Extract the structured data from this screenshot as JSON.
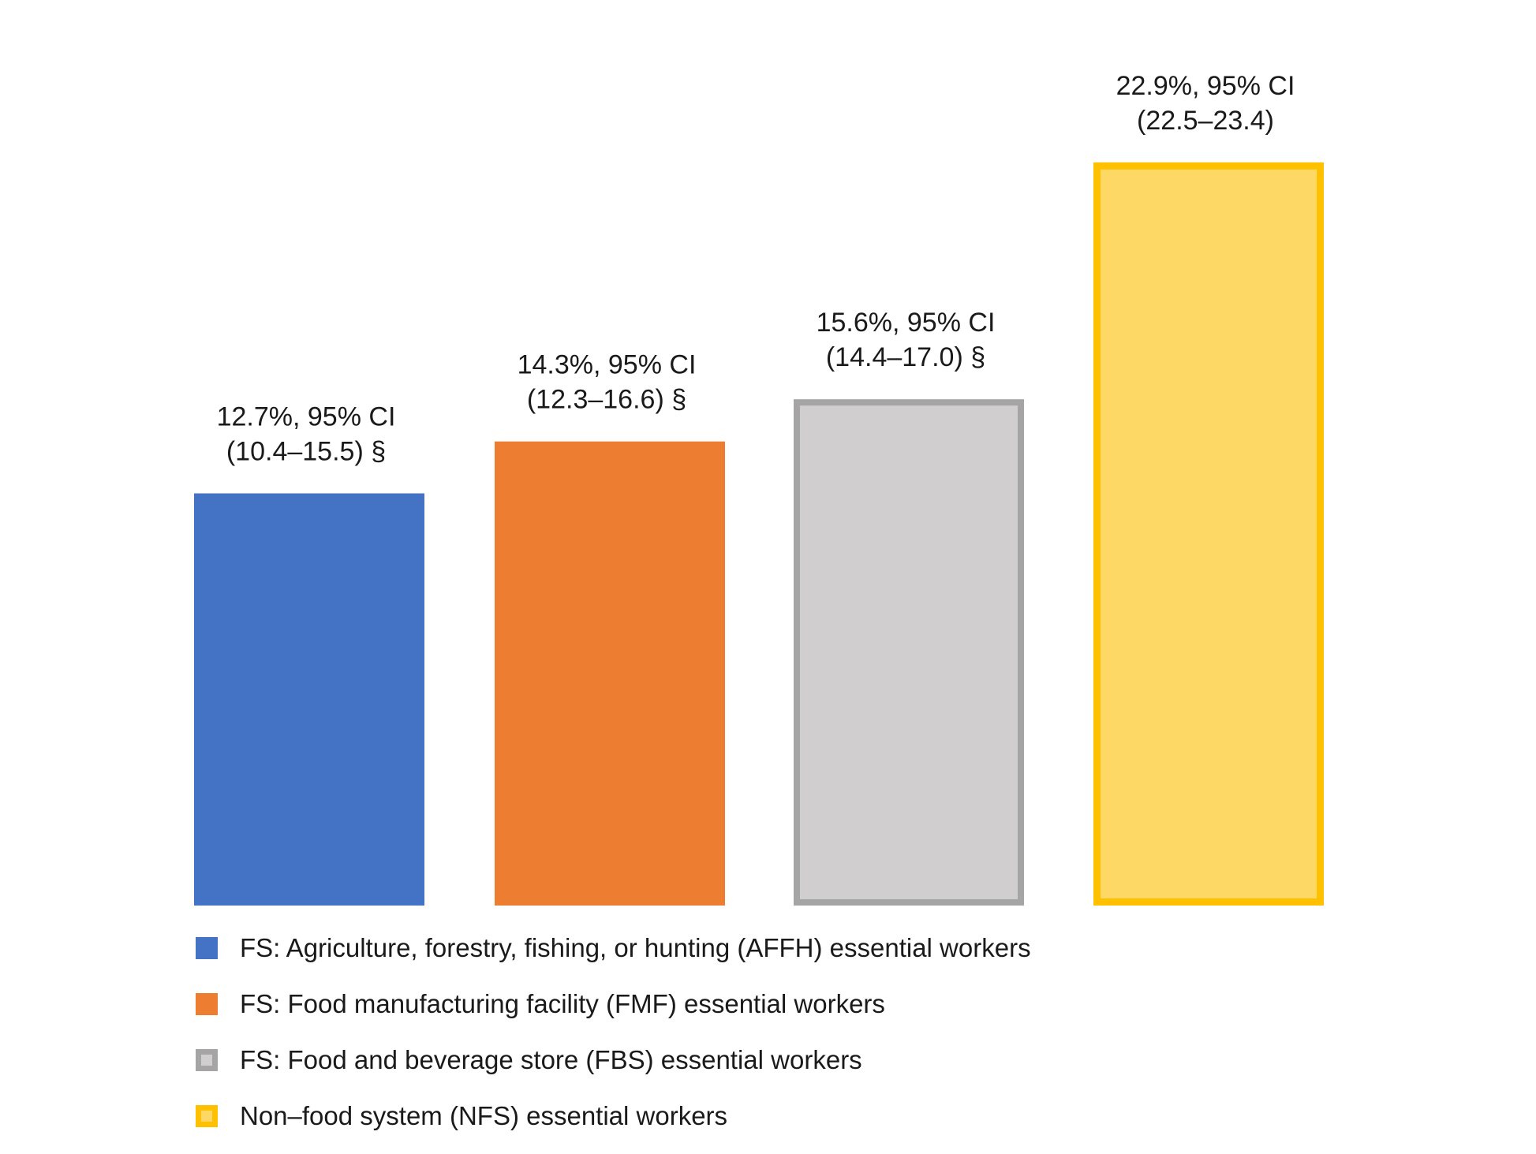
{
  "chart_data": {
    "type": "bar",
    "categories": [
      "FS: Agriculture, forestry, fishing, or hunting (AFFH) essential workers",
      "FS: Food manufacturing facility (FMF) essential workers",
      "FS: Food and beverage store (FBS) essential workers",
      "Non–food system (NFS) essential workers"
    ],
    "values": [
      12.7,
      14.3,
      15.6,
      22.9
    ],
    "ylim": [
      0,
      24.5
    ],
    "grid": false,
    "legend_position": "bottom-left",
    "data_labels": [
      [
        "12.7%, 95% CI",
        "(10.4–15.5) §"
      ],
      [
        "14.3%, 95% CI",
        "(12.3–16.6) §"
      ],
      [
        "15.6%, 95% CI",
        "(14.4–17.0) §"
      ],
      [
        "22.9%, 95% CI",
        "(22.5–23.4)"
      ]
    ],
    "colors": [
      {
        "fill": "#4472C4",
        "stroke": "#4472C4"
      },
      {
        "fill": "#ED7D31",
        "stroke": "#ED7D31"
      },
      {
        "fill": "#D0CECE",
        "stroke": "#A5A5A5"
      },
      {
        "fill": "#FDD865",
        "stroke": "#FFC000"
      }
    ]
  }
}
